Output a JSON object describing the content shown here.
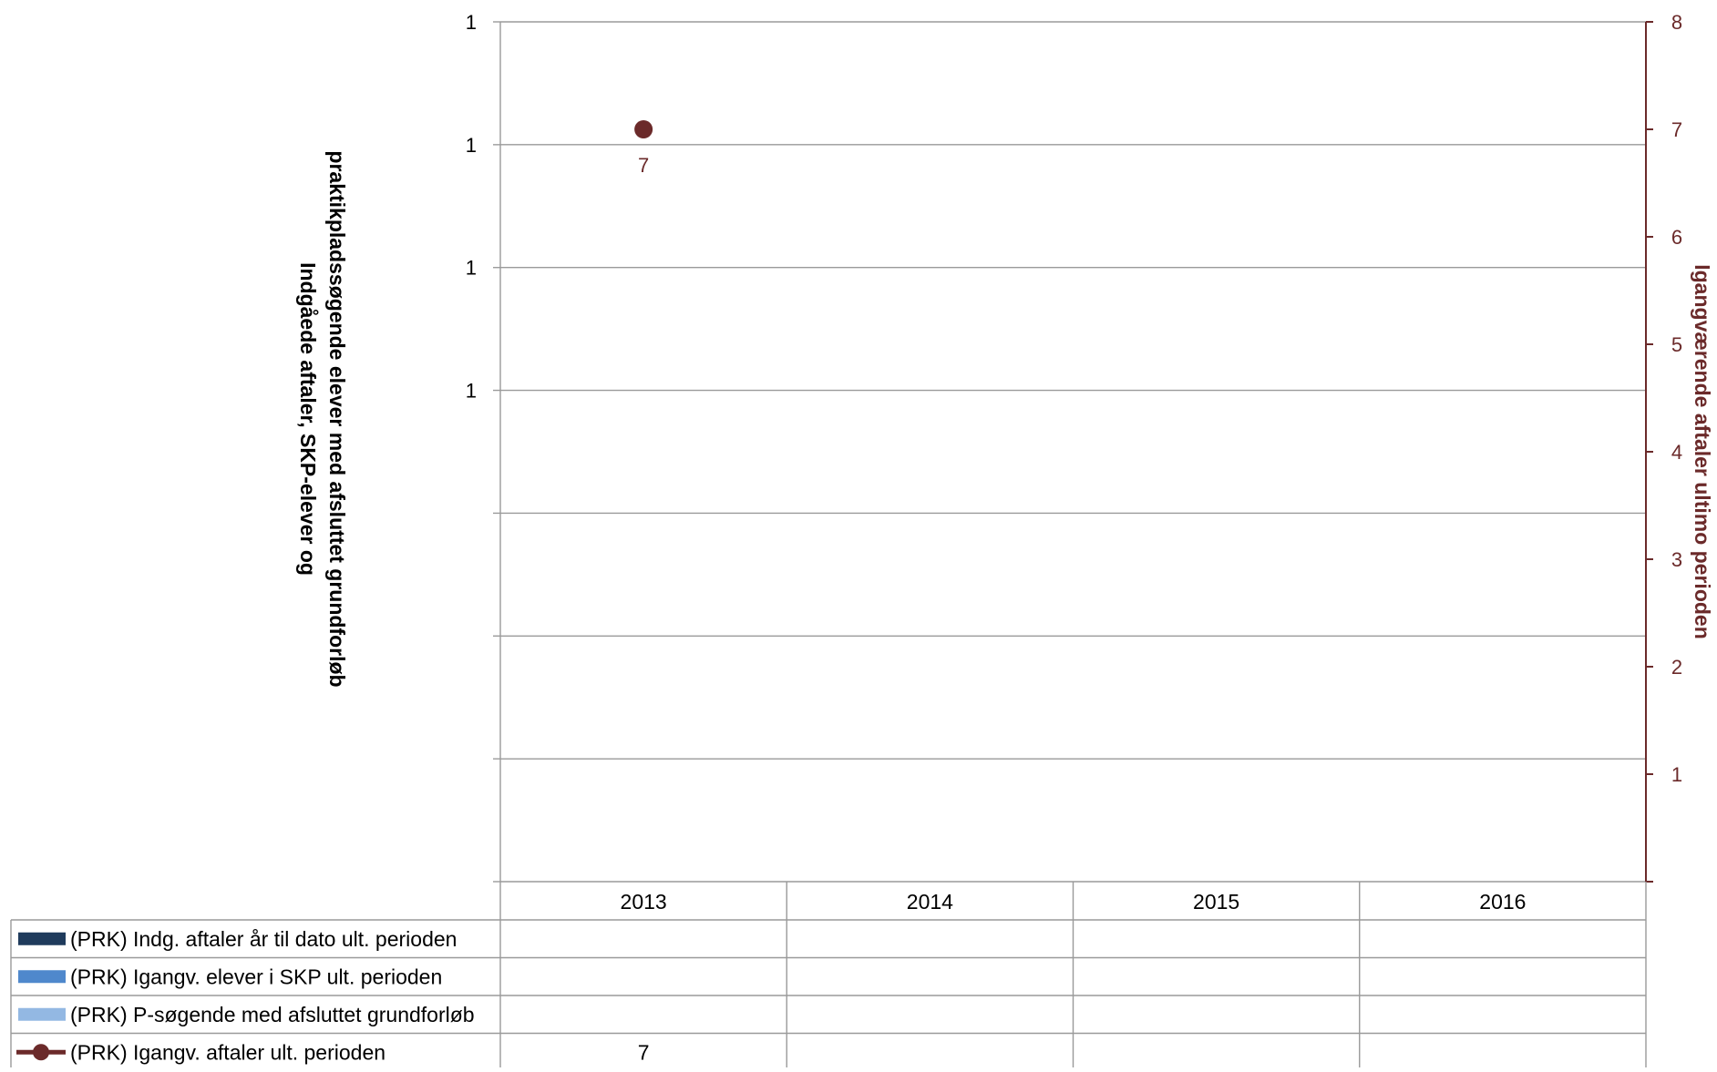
{
  "chart_data": {
    "type": "line",
    "categories": [
      "2013",
      "2014",
      "2015",
      "2016"
    ],
    "left_axis": {
      "title_lines": [
        "Indgåede aftaler, SKP-elever og",
        "praktikpladssøgende elever med afsluttet grundforløb"
      ],
      "tick_labels": [
        "1",
        "1",
        "1",
        "1",
        "",
        "",
        ""
      ]
    },
    "right_axis": {
      "title": "Igangværende aftaler ultimo perioden",
      "ylim": [
        0,
        8
      ],
      "ticks": [
        8,
        7,
        6,
        5,
        4,
        3,
        2,
        1
      ],
      "color": "#6b2a2a"
    },
    "grid": true,
    "series": [
      {
        "name": "(PRK) Indg. aftaler år til dato ult. perioden",
        "type": "bar",
        "axis": "left",
        "color": "#1f3b5c",
        "values": [
          null,
          null,
          null,
          null
        ]
      },
      {
        "name": "(PRK) Igangv. elever i SKP ult. perioden",
        "type": "bar",
        "axis": "left",
        "color": "#4f88cc",
        "values": [
          null,
          null,
          null,
          null
        ]
      },
      {
        "name": "(PRK) P-søgende med afsluttet grundforløb",
        "type": "bar",
        "axis": "left",
        "color": "#93b8e3",
        "values": [
          null,
          null,
          null,
          null
        ]
      },
      {
        "name": "(PRK) Igangv. aftaler ult. perioden",
        "type": "line",
        "axis": "right",
        "color": "#6b2a2a",
        "values": [
          7,
          null,
          null,
          null
        ]
      }
    ],
    "legend": "table-bottom"
  }
}
